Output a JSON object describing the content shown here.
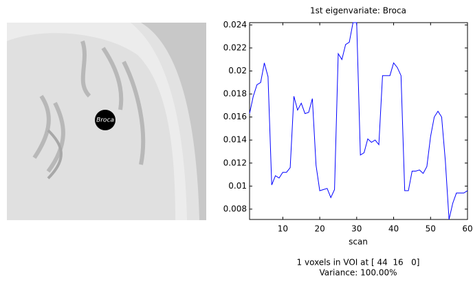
{
  "chart_data": {
    "type": "line",
    "title": "1st eigenvariate: Broca",
    "xlabel": "scan",
    "x": [
      1,
      2,
      3,
      4,
      5,
      6,
      7,
      8,
      9,
      10,
      11,
      12,
      13,
      14,
      15,
      16,
      17,
      18,
      19,
      20,
      21,
      22,
      23,
      24,
      25,
      26,
      27,
      28,
      29,
      30,
      31,
      32,
      33,
      34,
      35,
      36,
      37,
      38,
      39,
      40,
      41,
      42,
      43,
      44,
      45,
      46,
      47,
      48,
      49,
      50,
      51,
      52,
      53,
      54,
      55,
      56,
      57,
      58,
      59,
      60
    ],
    "values": [
      0.0163,
      0.0178,
      0.0188,
      0.019,
      0.0207,
      0.0195,
      0.0101,
      0.0109,
      0.0107,
      0.0112,
      0.0112,
      0.0116,
      0.0178,
      0.0166,
      0.0172,
      0.0163,
      0.0164,
      0.0176,
      0.0118,
      0.0096,
      0.0097,
      0.0098,
      0.009,
      0.0097,
      0.0215,
      0.021,
      0.0223,
      0.0225,
      0.0242,
      0.0242,
      0.0127,
      0.0129,
      0.0141,
      0.0138,
      0.014,
      0.0136,
      0.0196,
      0.0196,
      0.0196,
      0.0207,
      0.0203,
      0.0196,
      0.0096,
      0.0096,
      0.0113,
      0.0113,
      0.0114,
      0.0111,
      0.0117,
      0.0143,
      0.016,
      0.0165,
      0.016,
      0.0122,
      0.0071,
      0.0085,
      0.0094,
      0.0094,
      0.0094,
      0.0096
    ],
    "color": "#0000ff",
    "xlim": [
      1,
      60
    ],
    "xticks": [
      10,
      20,
      30,
      40,
      50,
      60
    ],
    "ylim": [
      0.0071,
      0.0242
    ],
    "yticks": [
      0.008,
      0.01,
      0.012,
      0.014,
      0.016,
      0.018,
      0.02,
      0.022,
      0.024
    ],
    "footer": [
      "1 voxels in VOI at [ 44  16   0]",
      "Variance: 100.00%"
    ]
  },
  "image": {
    "marker_label": "Broca"
  }
}
